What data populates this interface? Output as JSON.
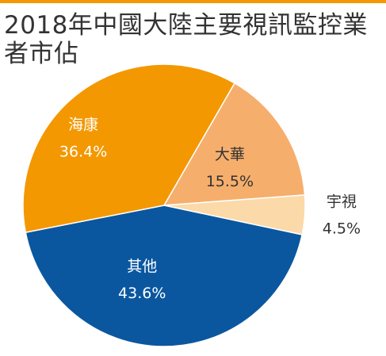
{
  "colors": {
    "accent": "#f39800",
    "title": "#333333",
    "outside_label": "#333333",
    "inside_label": "#ffffff"
  },
  "chart_data": {
    "type": "pie",
    "title": "2018年中國大陸主要視訊監控業者市佔",
    "title_lines": [
      "2018年中國大陸主要視訊監控業者市佔"
    ],
    "unit": "%",
    "slices": [
      {
        "label": "大華",
        "value": 15.5,
        "value_text": "15.5%",
        "color": "#f6ae6c",
        "label_color": "#333333",
        "label_position": "inside"
      },
      {
        "label": "宇視",
        "value": 4.5,
        "value_text": "4.5%",
        "color": "#fbd9a8",
        "label_color": "#333333",
        "label_position": "outside"
      },
      {
        "label": "其他",
        "value": 43.6,
        "value_text": "43.6%",
        "color": "#0a57a0",
        "label_color": "#ffffff",
        "label_position": "inside"
      },
      {
        "label": "海康",
        "value": 36.4,
        "value_text": "36.4%",
        "color": "#f39800",
        "label_color": "#ffffff",
        "label_position": "inside"
      }
    ],
    "legend": "none"
  }
}
